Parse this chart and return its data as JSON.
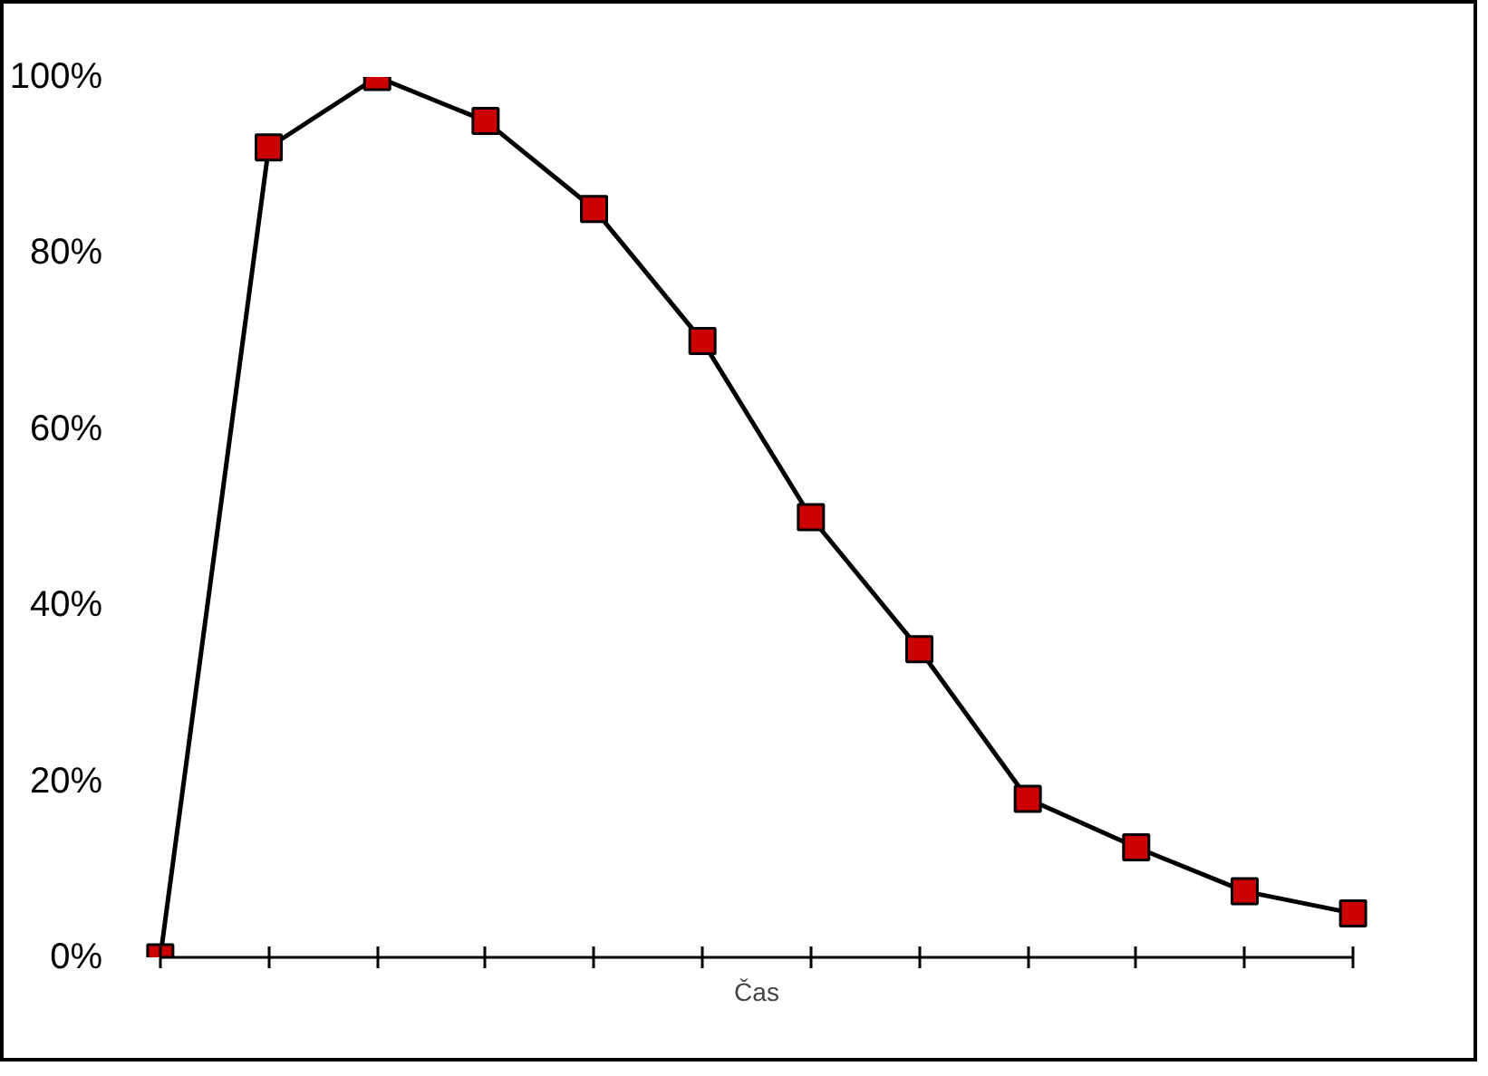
{
  "chart_data": {
    "type": "line",
    "xlabel": "Čas",
    "categories": [
      null,
      null,
      null,
      null,
      null,
      null,
      null,
      null,
      null,
      null,
      null,
      null
    ],
    "series": [
      {
        "color": "#cc0000",
        "values": [
          0,
          92,
          100,
          95,
          85,
          70,
          50,
          35,
          18,
          12.5,
          7.5,
          5
        ]
      }
    ],
    "ylim": [
      0,
      100
    ],
    "yticks": [
      {
        "value": 0,
        "label": "0%"
      },
      {
        "value": 20,
        "label": "20%"
      },
      {
        "value": 40,
        "label": "40%"
      },
      {
        "value": 60,
        "label": "60%"
      },
      {
        "value": 80,
        "label": "80%"
      },
      {
        "value": 100,
        "label": "100%"
      }
    ],
    "marker": "square",
    "line_style": "solid"
  }
}
